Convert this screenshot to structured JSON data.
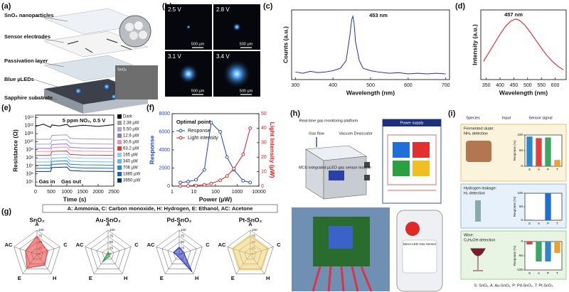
{
  "panel_labels": [
    "(a)",
    "(b)",
    "(c)",
    "(d)",
    "(e)",
    "(f)",
    "(g)",
    "(h)",
    "(i)"
  ],
  "panel_a": {
    "labels": [
      "SnO₂ nanoparticles",
      "Sensor electrodes",
      "Passivation layer",
      "Blue µLEDs",
      "Sapphire substrate"
    ],
    "inset_label": "SnO₂"
  },
  "panel_b": {
    "voltages": [
      "2.5 V",
      "2.8 V",
      "3.1 V",
      "3.4 V"
    ],
    "scale_bar": "500 µm"
  },
  "panel_g_caption": "A: Ammonia, C: Carbon monoxide, H: Hydrogen, E: Ethanol, AC: Acetone",
  "panel_h": {
    "platform": "Real-time gas monitoring platform",
    "gas_flow": "Gas flow",
    "desiccator": "Vacuum Desiccator",
    "module": "MCU integrated µLED gas sensor module",
    "power": "Power supply",
    "app": "Micro-LED Gas Sensor"
  },
  "panel_i": {
    "headers": [
      "Species",
      "Input",
      "Sensor signal"
    ],
    "cases": [
      [
        "Fermented skate:",
        "NH₃ detection"
      ],
      [
        "Hydrogen leakage:",
        "H₂ detection"
      ],
      [
        "Wine:",
        "C₂H₅OH detection"
      ]
    ],
    "footnote": "S: SnO₂, A: Au-SnO₂, P: Pd-SnO₂, T: Pt-SnO₂"
  },
  "chart_data": [
    {
      "type": "line",
      "xlabel": "Wavelength (nm)",
      "ylabel": "Counts (a.u.)",
      "annotations": [
        "453 nm"
      ],
      "x": [
        300,
        320,
        340,
        360,
        380,
        400,
        420,
        435,
        445,
        450,
        453,
        456,
        460,
        470,
        480,
        500,
        520,
        550,
        575,
        600,
        625,
        650,
        675,
        700
      ],
      "series": [
        {
          "color": "#1f2fbf",
          "values": [
            0.12,
            0.1,
            0.13,
            0.11,
            0.12,
            0.14,
            0.18,
            0.3,
            0.7,
            0.95,
            1.0,
            0.9,
            0.6,
            0.3,
            0.18,
            0.14,
            0.12,
            0.1,
            0.11,
            0.09,
            0.1,
            0.09,
            0.1,
            0.09
          ]
        }
      ],
      "xlim": [
        290,
        710
      ],
      "xticks": [
        300,
        400,
        500,
        600,
        700
      ],
      "ylim": [
        0,
        1.1
      ]
    },
    {
      "type": "line",
      "xlabel": "Wavelength (nm)",
      "ylabel": "Intensity (a.u.)",
      "annotations": [
        "457 nm"
      ],
      "x": [
        340,
        360,
        380,
        400,
        420,
        440,
        457,
        470,
        490,
        510,
        530,
        550,
        570,
        590,
        610,
        630
      ],
      "series": [
        {
          "color": "#e01010",
          "values": [
            0.3,
            0.45,
            0.6,
            0.75,
            0.88,
            0.97,
            1.0,
            0.98,
            0.9,
            0.78,
            0.65,
            0.52,
            0.4,
            0.3,
            0.22,
            0.16
          ]
        }
      ],
      "xlim": [
        330,
        640
      ],
      "xticks": [
        350,
        400,
        450,
        500,
        550,
        600
      ],
      "ylim": [
        0,
        1.15
      ]
    },
    {
      "type": "line",
      "xlabel": "Time (s)",
      "ylabel": "Resistance (Ω)",
      "annotations": [
        "5 ppm NO₂, 0.5 V",
        "Gas in",
        "Gas out"
      ],
      "ylog": true,
      "legend": "right",
      "x": [
        0,
        250,
        480,
        520,
        750,
        1000,
        1100,
        1500,
        2000,
        2500
      ],
      "xlim": [
        0,
        2500
      ],
      "xticks": [
        0,
        500,
        1000,
        1500,
        2000,
        2500
      ],
      "ylim": [
        30000,
        20000000000000
      ],
      "yticks": [
        {
          "value": 100000,
          "label": "10⁵"
        },
        {
          "value": 1000000,
          "label": "10⁶"
        },
        {
          "value": 10000000,
          "label": "10⁷"
        },
        {
          "value": 100000000,
          "label": "10⁸"
        },
        {
          "value": 1000000000,
          "label": "10⁹"
        },
        {
          "value": 10000000000,
          "label": "10¹⁰"
        },
        {
          "value": 100000000000,
          "label": "10¹¹"
        },
        {
          "value": 1000000000000,
          "label": "10¹²"
        },
        {
          "value": 10000000000000,
          "label": "10¹³"
        }
      ],
      "series": [
        {
          "name": "Dark",
          "color": "#000000",
          "values": [
            800000000000,
            1500000000000,
            600000000000,
            1200000000000,
            900000000000,
            1400000000000,
            700000000000,
            1100000000000,
            800000000000,
            1300000000000
          ]
        },
        {
          "name": "2.38 µW",
          "color": "#9e9e9e",
          "values": [
            20000000000,
            20000000000,
            20000000000,
            60000000000,
            66000000000,
            70000000000,
            26000000000,
            22000000000,
            21000000000,
            20000000000
          ]
        },
        {
          "name": "5.50 µW",
          "color": "#b39ddb",
          "values": [
            5000000000,
            5000000000,
            5000000000,
            15000000000,
            16500000000,
            17500000000,
            6500000000,
            5500000000,
            5250000000,
            5000000000
          ]
        },
        {
          "name": "12.6 µW",
          "color": "#9575cd",
          "values": [
            1500000000,
            1500000000,
            1500000000,
            4500000000,
            4950000000,
            5250000000,
            1950000000,
            1650000000,
            1580000000,
            1500000000
          ]
        },
        {
          "name": "30.6 µW",
          "color": "#f48fb1",
          "values": [
            600000000,
            600000000,
            600000000,
            1800000000,
            1980000000,
            2100000000,
            780000000,
            660000000,
            630000000,
            600000000
          ]
        },
        {
          "name": "63.2 µW",
          "color": "#e53935",
          "values": [
            200000000,
            200000000,
            200000000,
            600000000,
            660000000,
            700000000,
            260000000,
            220000000,
            210000000,
            200000000
          ]
        },
        {
          "name": "165 µW",
          "color": "#90caf9",
          "values": [
            80000000,
            80000000,
            80000000,
            240000000,
            264000000,
            280000000,
            104000000,
            88000000,
            84000000,
            80000000
          ]
        },
        {
          "name": "340 µW",
          "color": "#64b5f6",
          "values": [
            30000000,
            30000000,
            30000000,
            90000000,
            99000000,
            105000000,
            39000000,
            33000000,
            31500000,
            30000000
          ]
        },
        {
          "name": "706 µW",
          "color": "#1e88e5",
          "values": [
            12000000,
            12000000,
            12000000,
            36000000,
            39600000,
            42000000,
            15600000,
            13200000,
            12600000,
            12000000
          ]
        },
        {
          "name": "1885 µW",
          "color": "#1565c0",
          "values": [
            5000000,
            5000000,
            5000000,
            15000000,
            16500000,
            17500000,
            6500000,
            5500000,
            5250000,
            5000000
          ]
        },
        {
          "name": "3950 µW",
          "color": "#0d2a80",
          "values": [
            2000000,
            2000000,
            2000000,
            6000000,
            6600000,
            7000000,
            2600000,
            2200000,
            2100000,
            2000000
          ]
        }
      ]
    },
    {
      "type": "line",
      "xlabel": "Power (µW)",
      "ylabel": "Response",
      "y2label": "Light Intensity (µW)",
      "annotations": [
        "Optimal point"
      ],
      "xlog": true,
      "legend": "upper left",
      "x": [
        2.38,
        5.5,
        12.6,
        30.6,
        63.2,
        165,
        340,
        706,
        1885,
        3950
      ],
      "xlim": [
        1,
        10000
      ],
      "xticks": [
        1,
        10,
        100,
        1000,
        10000
      ],
      "ylim": [
        0,
        8000
      ],
      "yticks": [
        0,
        2000,
        4000,
        6000,
        8000
      ],
      "y2lim": [
        0,
        50
      ],
      "y2ticks": [
        0,
        10,
        20,
        30,
        40,
        50
      ],
      "series": [
        {
          "name": "Response",
          "color": "#1f3fcf",
          "marker": true,
          "values": [
            400,
            500,
            700,
            1800,
            7000,
            6000,
            3200,
            1800,
            600,
            400
          ]
        },
        {
          "name": "Light intensity",
          "color": "#e02020",
          "marker": true,
          "axis": "y2",
          "values": [
            0.1,
            0.2,
            0.4,
            0.9,
            1.8,
            4,
            7,
            12,
            22,
            40
          ]
        }
      ]
    },
    {
      "type": "radar",
      "title": "SnO₂",
      "categories": [
        "A",
        "C",
        "H",
        "E",
        "AC"
      ],
      "values": [
        75,
        45,
        55,
        70,
        50
      ],
      "color": "#e53935",
      "rlim": [
        0,
        100
      ],
      "rticks": [
        0,
        25,
        50,
        75,
        100
      ]
    },
    {
      "type": "radar",
      "title": "Au-SnO₂",
      "categories": [
        "A",
        "C",
        "H",
        "E",
        "AC"
      ],
      "values": [
        10,
        5,
        10,
        40,
        5
      ],
      "color": "#2e9d42",
      "rlim": [
        0,
        100
      ],
      "rticks": [
        0,
        25,
        50,
        75,
        100
      ]
    },
    {
      "type": "radar",
      "title": "Pd-SnO₂",
      "categories": [
        "A",
        "C",
        "H",
        "E",
        "AC"
      ],
      "values": [
        30,
        20,
        90,
        10,
        25
      ],
      "color": "#2030c0",
      "rlim": [
        0,
        100
      ],
      "rticks": [
        0,
        25,
        50,
        75,
        100
      ]
    },
    {
      "type": "radar",
      "title": "Pt-SnO₂",
      "categories": [
        "A",
        "C",
        "H",
        "E",
        "AC"
      ],
      "values": [
        80,
        80,
        80,
        80,
        80
      ],
      "color": "#f0d070",
      "rlim": [
        0,
        100
      ],
      "rticks": [
        0,
        25,
        50,
        75,
        100
      ]
    },
    {
      "type": "bar",
      "ylabel": "Response (%)",
      "categories": [
        "S",
        "A",
        "P",
        "T"
      ],
      "values": [
        95,
        90,
        92,
        20
      ],
      "colors": [
        "#2f86c8",
        "#e04040",
        "#3aa860",
        "#f0a030"
      ],
      "ylim": [
        0,
        100
      ],
      "yticks": [
        0,
        50,
        100
      ]
    },
    {
      "type": "bar",
      "ylabel": "Response (%)",
      "categories": [
        "S",
        "A",
        "P",
        "T"
      ],
      "values": [
        2,
        1,
        100,
        3
      ],
      "colors": [
        "#2f86c8",
        "#e04040",
        "#1f6fd0",
        "#f0a030"
      ],
      "ylim": [
        0,
        100
      ],
      "yticks": [
        0,
        50,
        100
      ]
    },
    {
      "type": "bar",
      "ylabel": "Response (%)",
      "categories": [
        "S",
        "A",
        "P",
        "T"
      ],
      "values": [
        -10,
        -70,
        -70,
        -40
      ],
      "colors": [
        "#e04040",
        "#3aa860",
        "#2f86c8",
        "#f0a030"
      ],
      "ylim": [
        -100,
        0
      ],
      "yticks": [
        0,
        -50,
        -100
      ]
    }
  ]
}
